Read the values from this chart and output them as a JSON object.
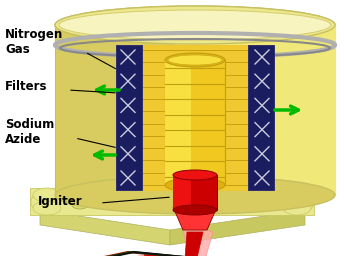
{
  "labels": {
    "nitrogen_gas": "Nitrogen\nGas",
    "filters": "Filters",
    "sodium_azide": "Sodium\nAzide",
    "igniter": "Igniter"
  },
  "colors": {
    "background": "#ffffff",
    "base_plate_top": "#e8e890",
    "base_plate_side": "#d4d470",
    "base_plate_edge": "#c8c860",
    "outer_cyl_face": "#d8cc60",
    "outer_cyl_light": "#f0e878",
    "outer_cyl_top": "#f5f0a0",
    "filter_dark_blue": "#1a1e60",
    "filter_mid_blue": "#222870",
    "sodium_azide_yellow": "#f0c830",
    "sodium_azide_light": "#f8e050",
    "inner_cyl_body": "#f0c820",
    "inner_cyl_light": "#f8e040",
    "inner_cyl_top": "#e0b010",
    "igniter_dark": "#cc0000",
    "igniter_bright": "#ee1111",
    "igniter_top": "#ff3333",
    "igniter_cone_light": "#ff8888",
    "wire_tube": "#ffaaaa",
    "wire_red": "#cc0000",
    "wire_green": "#006600",
    "wire_black": "#111111",
    "arrow_green": "#00bb00",
    "label_color": "#000000",
    "silver_gray": "#b0b0b0",
    "rim_dark": "#888888",
    "cap_light": "#f8f4c0",
    "cap_mid": "#ece890"
  },
  "font_sizes": {
    "label": 8.5
  }
}
